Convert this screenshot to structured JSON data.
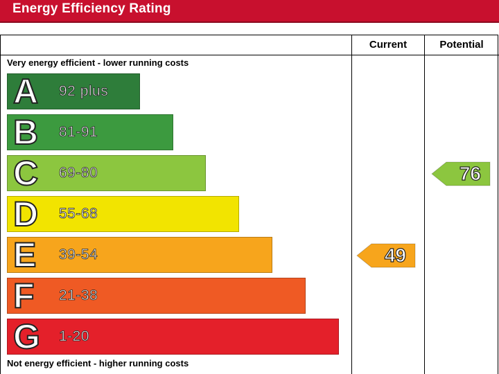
{
  "banner": {
    "title": "Energy Efficiency Rating"
  },
  "columns": {
    "current": "Current",
    "potential": "Potential"
  },
  "captions": {
    "top": "Very energy efficient - lower running costs",
    "bottom": "Not energy efficient - higher running costs"
  },
  "chart_data": {
    "type": "bar",
    "title": "Energy Efficiency Rating",
    "categories": [
      "A",
      "B",
      "C",
      "D",
      "E",
      "F",
      "G"
    ],
    "bands": [
      {
        "letter": "A",
        "range": "92 plus",
        "color": "#2e7d3a"
      },
      {
        "letter": "B",
        "range": "81-91",
        "color": "#3c9a3f"
      },
      {
        "letter": "C",
        "range": "69-80",
        "color": "#8cc63f"
      },
      {
        "letter": "D",
        "range": "55-68",
        "color": "#f2e400"
      },
      {
        "letter": "E",
        "range": "39-54",
        "color": "#f7a51c"
      },
      {
        "letter": "F",
        "range": "21-38",
        "color": "#ef5a24"
      },
      {
        "letter": "G",
        "range": "1-20",
        "color": "#e4202a"
      }
    ],
    "current": {
      "value": "49",
      "band": "E",
      "color": "#f7a51c"
    },
    "potential": {
      "value": "76",
      "band": "C",
      "color": "#8cc63f"
    }
  }
}
